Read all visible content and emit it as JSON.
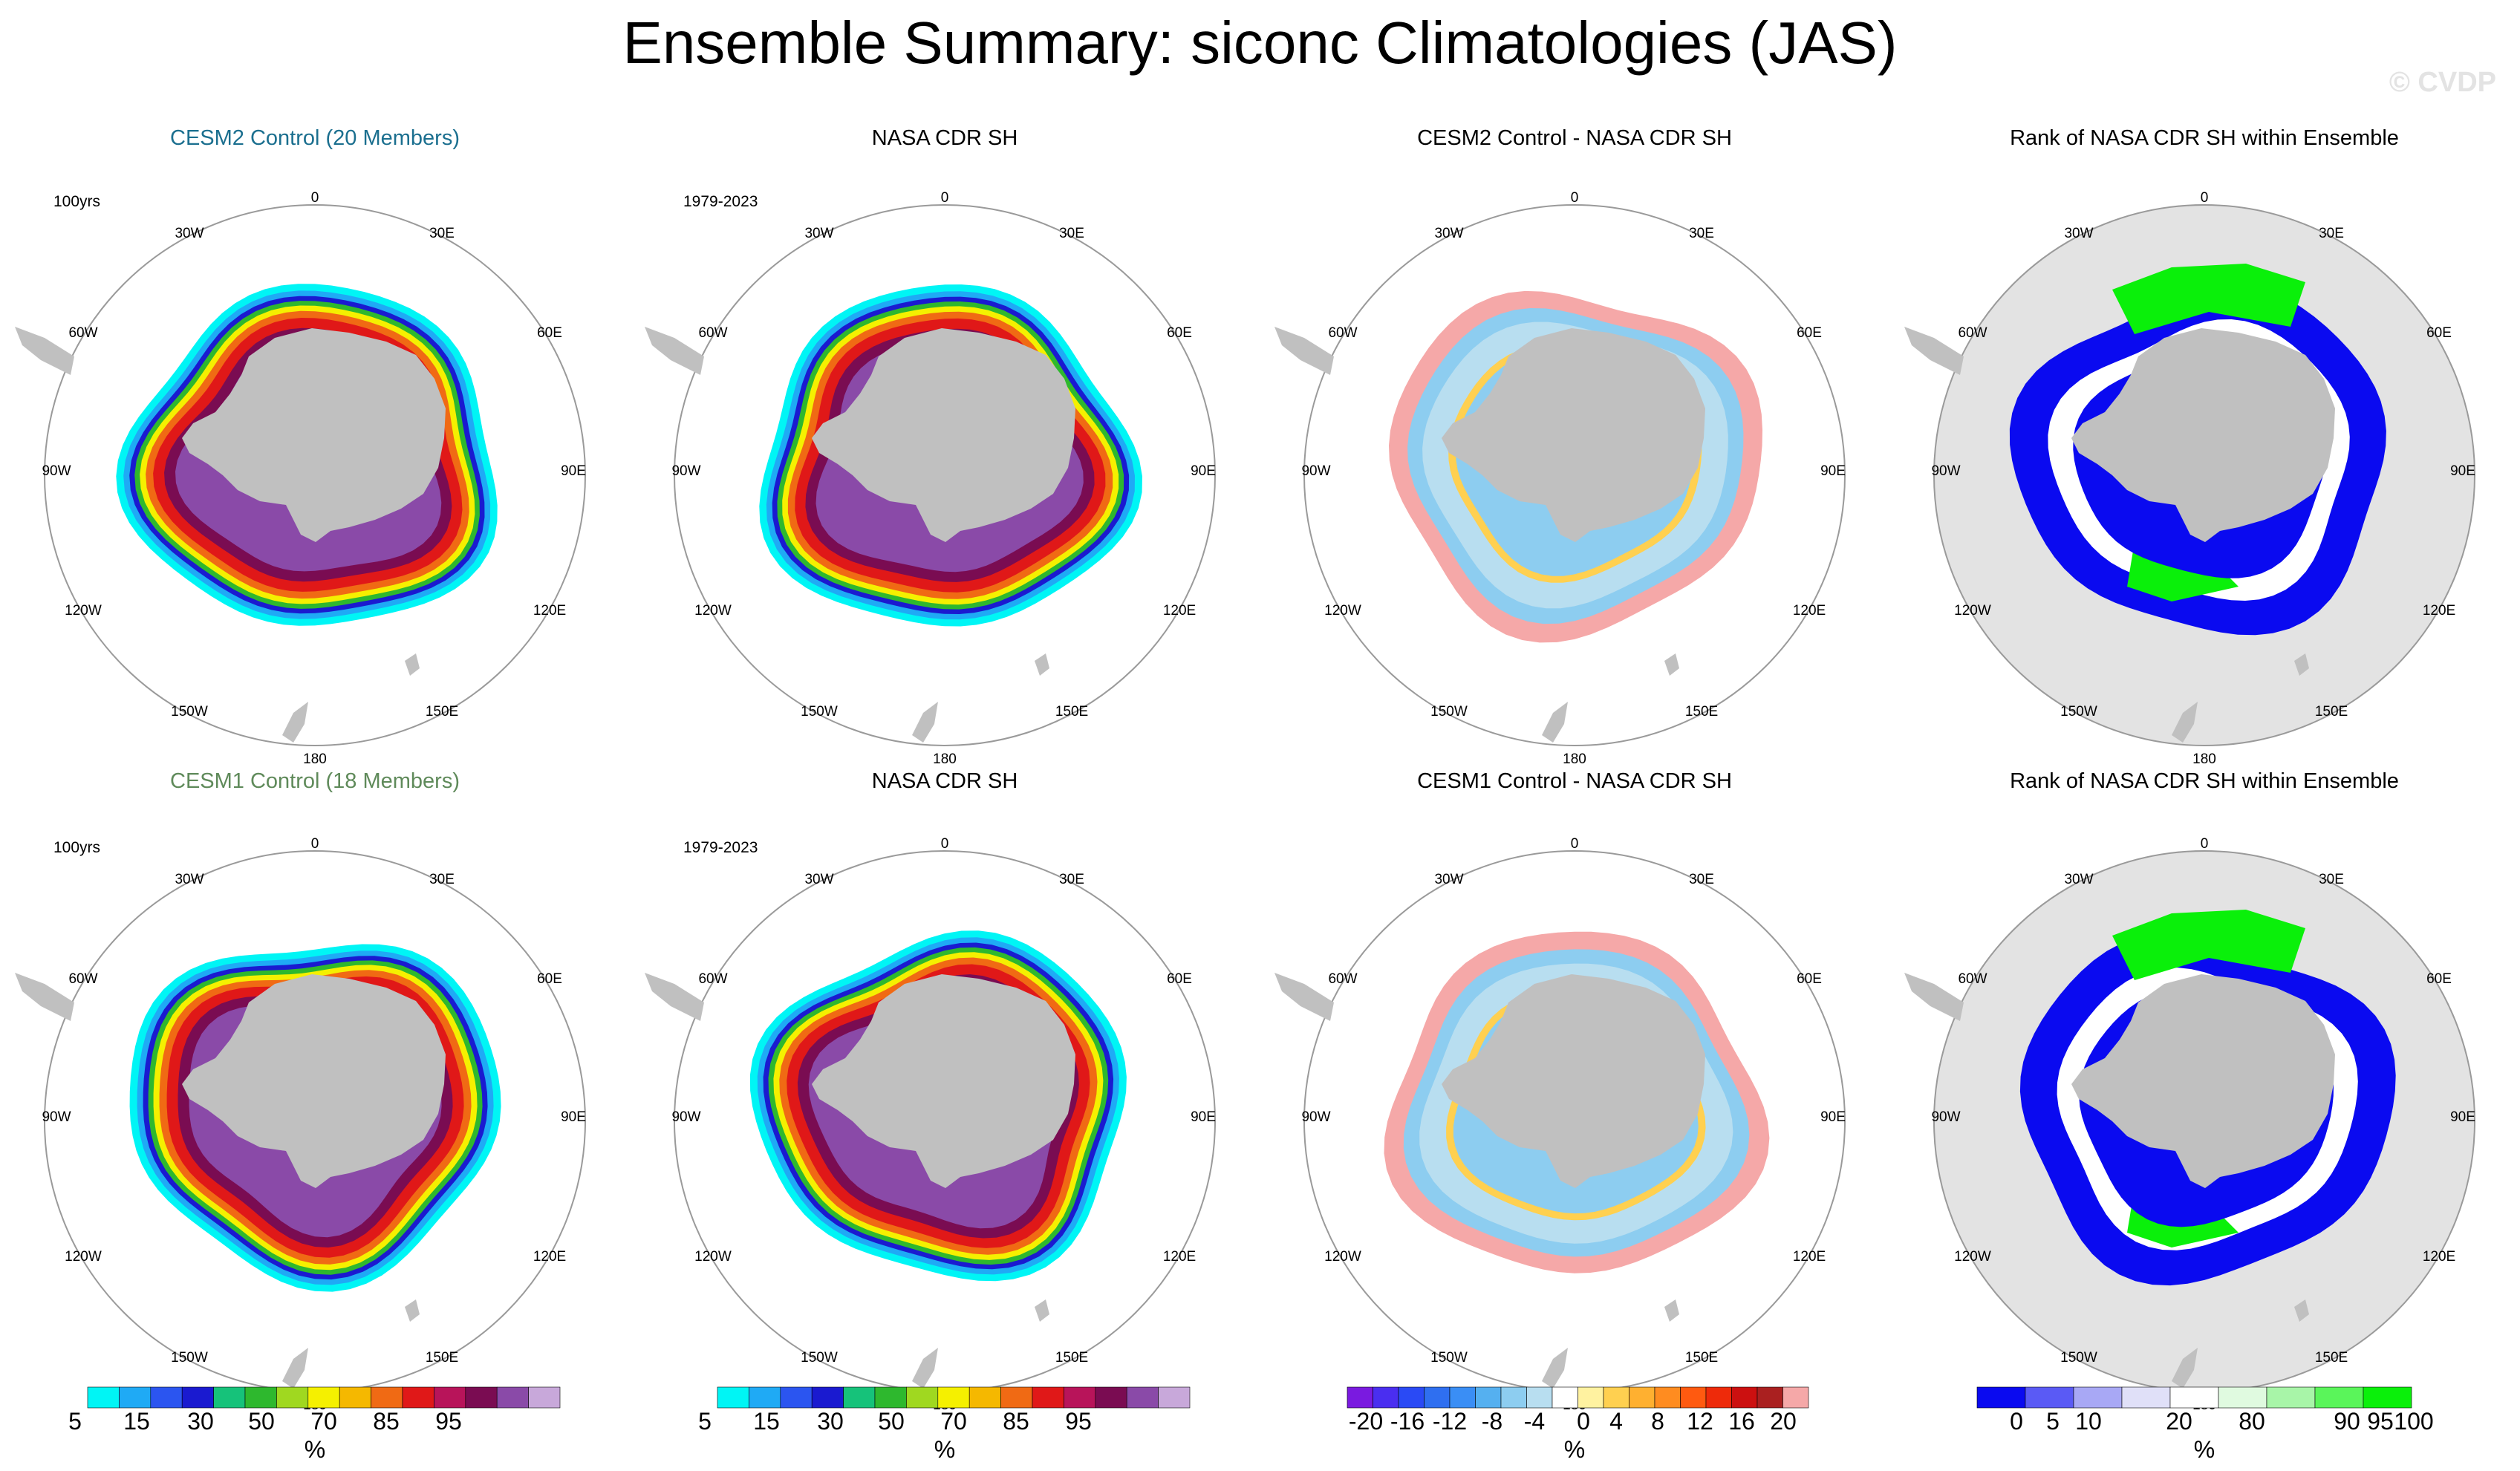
{
  "title": "Ensemble Summary: siconc Climatologies (JAS)",
  "watermark": "© CVDP",
  "map_labels": {
    "top": "0",
    "bottom": "180",
    "nw": "30W",
    "ne": "30E",
    "w60": "60W",
    "e60": "60E",
    "w90": "90W",
    "e90": "90E",
    "w120": "120W",
    "e120": "120E",
    "w150": "150W",
    "e150": "150E"
  },
  "colors": {
    "land": "#c0c0c0",
    "ocean_rank_bg": "#e3e3e3",
    "siconc_scale": [
      "#00f5f5",
      "#1faaf5",
      "#2b55f0",
      "#1a1ad0",
      "#16c27a",
      "#2eb82e",
      "#a0d820",
      "#f5f000",
      "#f5b800",
      "#f06a14",
      "#e01818",
      "#b8145a",
      "#7a0c52",
      "#8a4aa8",
      "#c8a8da"
    ],
    "diff_scale": [
      "#7a1ae0",
      "#4a2ef0",
      "#2a4af5",
      "#2f6ff0",
      "#3a8ef5",
      "#55b0f0",
      "#8dcdf0",
      "#b8def0",
      "#ffffff",
      "#fff2a0",
      "#ffd050",
      "#ffb030",
      "#ff8c20",
      "#ff5a10",
      "#ee2a0a",
      "#cc1010",
      "#aa2020",
      "#f5a8a8"
    ],
    "rank_scale": [
      "#0a0af0",
      "#5a5af5",
      "#a8a8f5",
      "#e0e0f8",
      "#ffffff",
      "#e0fae0",
      "#a8f5a8",
      "#5af55a",
      "#0af00a"
    ]
  },
  "panels": [
    {
      "title": "CESM2 Control (20 Members)",
      "period": "100yrs",
      "type": "siconc",
      "diff": false
    },
    {
      "title": "NASA CDR SH",
      "period": "1979-2023",
      "type": "siconc_obs"
    },
    {
      "title": "CESM2 Control - NASA CDR SH",
      "period": "",
      "type": "diff"
    },
    {
      "title": "Rank of NASA CDR SH within Ensemble",
      "period": "",
      "type": "rank"
    },
    {
      "title": "CESM1 Control (18 Members)",
      "period": "100yrs",
      "type": "siconc"
    },
    {
      "title": "NASA CDR SH",
      "period": "1979-2023",
      "type": "siconc_obs"
    },
    {
      "title": "CESM1 Control - NASA CDR SH",
      "period": "",
      "type": "diff"
    },
    {
      "title": "Rank of NASA CDR SH within Ensemble",
      "period": "",
      "type": "rank"
    }
  ],
  "legends": {
    "siconc": {
      "ticks": [
        "5",
        "15",
        "30",
        "50",
        "70",
        "85",
        "95"
      ],
      "unit": "%"
    },
    "diff": {
      "ticks": [
        "-20",
        "-16",
        "-12",
        "-8",
        "-4",
        "0",
        "4",
        "8",
        "12",
        "16",
        "20"
      ],
      "unit": "%"
    },
    "rank": {
      "ticks": [
        "0",
        "5",
        "10",
        "20",
        "80",
        "90",
        "95",
        "100"
      ],
      "unit": "%"
    }
  }
}
